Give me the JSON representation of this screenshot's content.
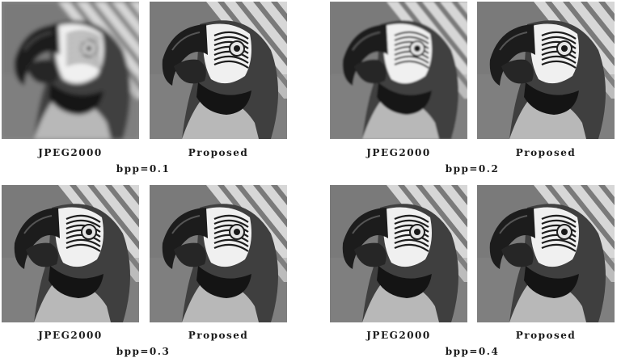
{
  "figure": {
    "panels": [
      {
        "bpp_label": "bpp=0.1",
        "left": {
          "caption": "JPEG2000",
          "quality": "blurry"
        },
        "right": {
          "caption": "Proposed",
          "quality": "sharp"
        }
      },
      {
        "bpp_label": "bpp=0.2",
        "left": {
          "caption": "JPEG2000",
          "quality": "medium"
        },
        "right": {
          "caption": "Proposed",
          "quality": "sharp"
        }
      },
      {
        "bpp_label": "bpp=0.3",
        "left": {
          "caption": "JPEG2000",
          "quality": "sharp"
        },
        "right": {
          "caption": "Proposed",
          "quality": "sharp"
        }
      },
      {
        "bpp_label": "bpp=0.4",
        "left": {
          "caption": "JPEG2000",
          "quality": "sharp"
        },
        "right": {
          "caption": "Proposed",
          "quality": "sharp"
        }
      }
    ]
  }
}
